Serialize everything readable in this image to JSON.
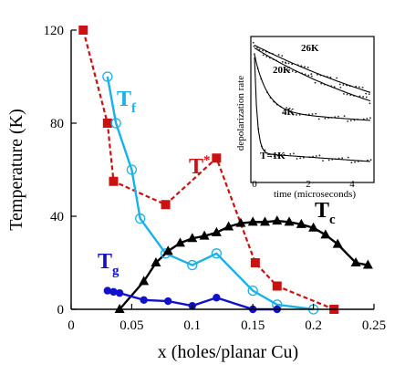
{
  "chart_data": {
    "type": "line",
    "xlabel": "x (holes/planar Cu)",
    "ylabel": "Temperature (K)",
    "xlim": [
      0,
      0.25
    ],
    "ylim": [
      0,
      120
    ],
    "x_ticks": [
      "0",
      "0.05",
      "0.1",
      "0.15",
      "0.2",
      "0.25"
    ],
    "x_tick_values": [
      0,
      0.05,
      0.1,
      0.15,
      0.2,
      0.25
    ],
    "y_ticks": [
      "0",
      "40",
      "80",
      "120"
    ],
    "y_tick_values": [
      0,
      40,
      80,
      120
    ],
    "series": [
      {
        "name": "T*",
        "color": "#cc1111",
        "style": "dashed",
        "marker": "square",
        "label_base": "T",
        "label_sup": "*",
        "x": [
          0.01,
          0.03,
          0.035,
          0.078,
          0.12,
          0.152,
          0.17,
          0.217
        ],
        "y": [
          120,
          80,
          55,
          45,
          65,
          20,
          10,
          0
        ]
      },
      {
        "name": "Tf",
        "color": "#1ab0e8",
        "style": "solid",
        "marker": "open-circle",
        "label_base": "T",
        "label_sub": "f",
        "x": [
          0.03,
          0.037,
          0.05,
          0.057,
          0.078,
          0.1,
          0.12,
          0.15,
          0.17,
          0.2
        ],
        "y": [
          100,
          80,
          60,
          39,
          24,
          19,
          24,
          8,
          2,
          0
        ]
      },
      {
        "name": "Tc",
        "color": "#000000",
        "style": "solid",
        "marker": "triangle",
        "label_base": "T",
        "label_sub": "c",
        "x": [
          0.04,
          0.06,
          0.07,
          0.08,
          0.09,
          0.1,
          0.11,
          0.12,
          0.13,
          0.14,
          0.15,
          0.16,
          0.17,
          0.18,
          0.19,
          0.2,
          0.21,
          0.22,
          0.235,
          0.245
        ],
        "y": [
          0,
          12,
          20,
          25,
          28.5,
          30.5,
          31.5,
          33,
          35.5,
          37,
          37.5,
          37.5,
          38,
          37.5,
          36.5,
          35,
          32,
          28,
          20,
          19
        ]
      },
      {
        "name": "Tg",
        "color": "#1111cc",
        "style": "solid",
        "marker": "filled-circle",
        "label_base": "T",
        "label_sub": "g",
        "x": [
          0.03,
          0.035,
          0.04,
          0.06,
          0.08,
          0.1,
          0.12,
          0.15,
          0.17
        ],
        "y": [
          8,
          7.5,
          7,
          4,
          3.5,
          1.5,
          5,
          0,
          0
        ]
      }
    ],
    "inset": {
      "ylabel": "depolarization rate",
      "xlabel": "time (microseconds)",
      "x_ticks": [
        "0",
        "2",
        "4"
      ],
      "curve_labels": [
        "26K",
        "20K",
        "4K",
        "T=1K"
      ]
    }
  }
}
